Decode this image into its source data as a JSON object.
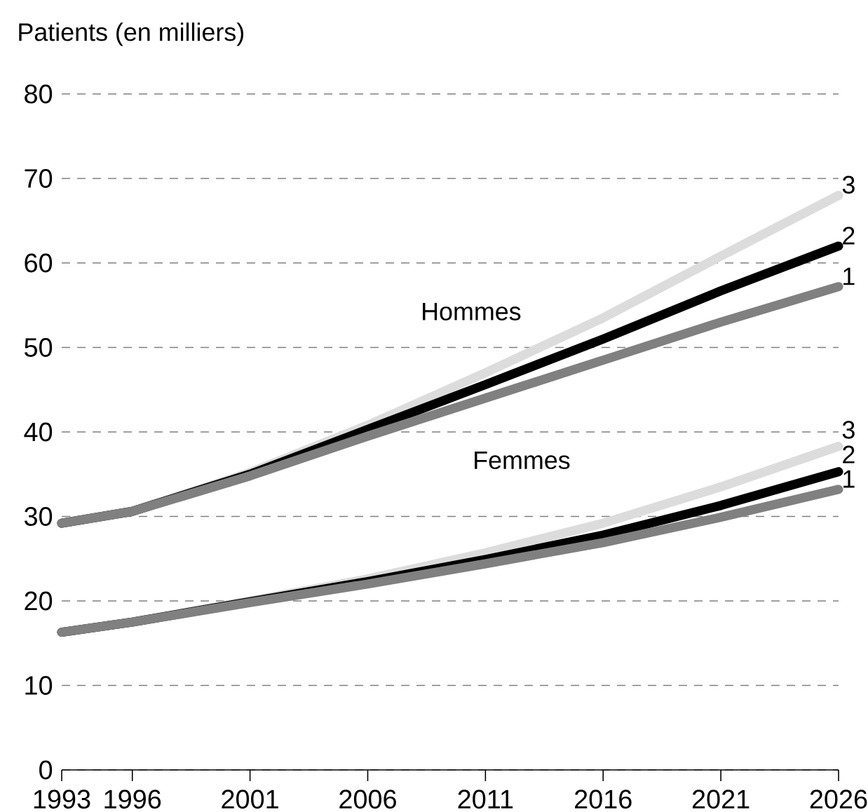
{
  "chart_data": {
    "type": "line",
    "ylabel": "Patients (en milliers)",
    "x": [
      1993,
      1996,
      2001,
      2006,
      2011,
      2016,
      2021,
      2026
    ],
    "xlim": [
      1993,
      2026
    ],
    "xticks": [
      1993,
      1996,
      2001,
      2006,
      2011,
      2016,
      2021,
      2026
    ],
    "ylim": [
      0,
      80
    ],
    "yticks": [
      0,
      10,
      20,
      30,
      40,
      50,
      60,
      70,
      80
    ],
    "grid": "y",
    "legend": false,
    "marker": "none",
    "line_style": "solid",
    "annotations": [
      "Hommes",
      "Femmes"
    ],
    "series": [
      {
        "name": "3",
        "color": "#dcdcdc",
        "values": [
          29.2,
          30.6,
          35.2,
          40.8,
          47,
          53.5,
          60.8,
          68
        ]
      },
      {
        "name": "2",
        "color": "#000000",
        "values": [
          29.2,
          30.6,
          35,
          40.3,
          45.6,
          51,
          56.7,
          62
        ]
      },
      {
        "name": "1",
        "color": "#808080",
        "values": [
          29.2,
          30.6,
          34.8,
          39.5,
          44,
          48.5,
          53,
          57.2
        ]
      },
      {
        "name": "3",
        "color": "#dcdcdc",
        "values": [
          16.3,
          17.5,
          20,
          22.6,
          25.7,
          29.2,
          33.5,
          38.3
        ]
      },
      {
        "name": "2",
        "color": "#000000",
        "values": [
          16.3,
          17.5,
          19.9,
          22.3,
          24.9,
          27.8,
          31.3,
          35.3
        ]
      },
      {
        "name": "1",
        "color": "#808080",
        "values": [
          16.3,
          17.5,
          19.8,
          22,
          24.4,
          26.9,
          29.9,
          33.2
        ]
      }
    ]
  }
}
